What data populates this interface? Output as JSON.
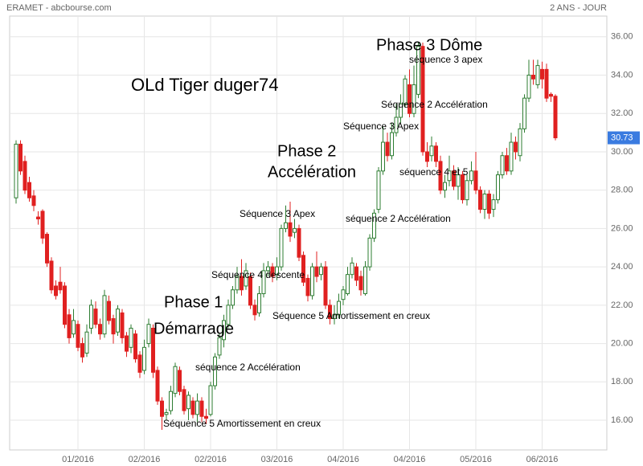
{
  "chart_data": {
    "type": "candlestick",
    "source": "ERAMET - abcbourse.com",
    "period": "2 ANS - JOUR",
    "categories": [
      null,
      null,
      null,
      null,
      null,
      null,
      null,
      null,
      null,
      null,
      null,
      null,
      null,
      null,
      "01/2016",
      null,
      null,
      null,
      null,
      null,
      null,
      null,
      null,
      null,
      null,
      null,
      null,
      null,
      null,
      "02/2016",
      null,
      null,
      null,
      null,
      null,
      null,
      null,
      null,
      null,
      null,
      null,
      null,
      null,
      null,
      "02/2016",
      null,
      null,
      null,
      null,
      null,
      null,
      null,
      null,
      null,
      null,
      null,
      null,
      null,
      null,
      "03/2016",
      null,
      null,
      null,
      null,
      null,
      null,
      null,
      null,
      null,
      null,
      null,
      null,
      null,
      null,
      "04/2016",
      null,
      null,
      null,
      null,
      null,
      null,
      null,
      null,
      null,
      null,
      null,
      null,
      null,
      null,
      "04/2016",
      null,
      null,
      null,
      null,
      null,
      null,
      null,
      null,
      null,
      null,
      null,
      null,
      null,
      null,
      "05/2016",
      null,
      null,
      null,
      null,
      null,
      null,
      null,
      null,
      null,
      null,
      null,
      null,
      null,
      null,
      "06/2016",
      null,
      null,
      null
    ],
    "open": [
      27.6,
      30.4,
      29.5,
      28.4,
      27.7,
      26.6,
      26.9,
      25.7,
      24.3,
      23.0,
      23.2,
      23.0,
      21.5,
      20.5,
      21.0,
      20.0,
      19.5,
      20.8,
      21.8,
      21.0,
      20.5,
      22.2,
      21.3,
      20.6,
      21.6,
      20.4,
      19.8,
      20.5,
      19.4,
      18.6,
      20.0,
      20.8,
      18.6,
      17.0,
      16.3,
      16.5,
      17.4,
      18.6,
      17.6,
      16.6,
      17.0,
      16.3,
      17.0,
      16.2,
      16.3,
      17.8,
      19.4,
      20.2,
      21.0,
      22.0,
      22.8,
      23.5,
      23.0,
      23.5,
      22.0,
      21.6,
      22.6,
      23.8,
      24.0,
      23.6,
      24.0,
      26.0,
      26.3,
      25.8,
      26.0,
      24.6,
      23.4,
      22.5,
      24.0,
      23.6,
      24.0,
      22.0,
      21.3,
      21.5,
      22.3,
      22.6,
      23.6,
      24.0,
      23.5,
      22.6,
      24.0,
      25.5,
      27.0,
      29.0,
      30.5,
      29.8,
      31.0,
      31.8,
      32.5,
      33.5,
      32.0,
      33.0,
      35.5,
      30.0,
      29.8,
      30.3,
      29.5,
      28.0,
      28.5,
      29.0,
      28.2,
      28.8,
      27.5,
      28.5,
      29.0,
      28.0,
      27.0,
      27.8,
      27.0,
      27.5,
      28.8,
      29.8,
      29.0,
      30.5,
      29.8,
      31.2,
      32.8,
      34.0,
      33.5,
      34.3,
      34.3,
      33.0,
      32.9
    ],
    "high": [
      30.6,
      30.6,
      29.8,
      28.7,
      28.0,
      26.9,
      27.0,
      25.8,
      24.5,
      23.3,
      24.0,
      23.2,
      21.8,
      21.8,
      21.2,
      20.3,
      21.0,
      22.3,
      22.2,
      21.3,
      22.8,
      22.5,
      21.5,
      22.0,
      21.8,
      20.6,
      21.0,
      20.7,
      19.6,
      20.2,
      21.3,
      21.0,
      18.8,
      17.2,
      16.6,
      17.8,
      19.0,
      18.8,
      17.8,
      17.5,
      17.2,
      17.4,
      17.2,
      16.6,
      18.0,
      19.5,
      20.5,
      21.5,
      22.3,
      23.0,
      24.0,
      24.4,
      24.2,
      23.7,
      22.3,
      23.0,
      24.2,
      24.3,
      24.2,
      24.5,
      26.2,
      27.2,
      27.4,
      26.5,
      26.2,
      24.8,
      23.6,
      24.2,
      24.8,
      24.2,
      24.3,
      22.3,
      22.0,
      22.6,
      23.0,
      24.0,
      24.5,
      24.2,
      23.8,
      24.3,
      25.7,
      27.0,
      29.2,
      31.3,
      31.0,
      31.5,
      32.5,
      33.0,
      34.0,
      34.3,
      34.5,
      35.7,
      35.7,
      30.5,
      30.8,
      30.5,
      29.8,
      28.8,
      29.8,
      29.3,
      29.2,
      29.0,
      28.8,
      29.5,
      30.0,
      28.2,
      28.0,
      28.0,
      27.8,
      29.0,
      30.0,
      30.2,
      31.0,
      30.8,
      31.5,
      33.0,
      34.8,
      34.8,
      34.8,
      34.7,
      34.6,
      33.1,
      33.0
    ],
    "low": [
      27.3,
      28.8,
      27.8,
      27.4,
      26.9,
      26.2,
      25.2,
      24.0,
      22.6,
      22.3,
      22.6,
      20.8,
      20.0,
      20.3,
      19.6,
      19.0,
      19.3,
      20.5,
      20.8,
      20.2,
      20.3,
      21.0,
      20.0,
      20.4,
      20.0,
      19.3,
      19.5,
      19.0,
      18.2,
      18.4,
      19.8,
      18.2,
      16.8,
      15.5,
      16.0,
      16.3,
      17.2,
      17.3,
      16.3,
      16.0,
      16.1,
      15.9,
      15.9,
      15.8,
      16.2,
      17.6,
      19.2,
      19.8,
      20.8,
      21.8,
      22.6,
      22.5,
      22.8,
      21.8,
      21.2,
      21.4,
      22.4,
      23.5,
      23.2,
      23.3,
      23.8,
      25.8,
      25.3,
      25.5,
      24.3,
      23.0,
      22.2,
      22.3,
      23.2,
      23.3,
      21.8,
      21.0,
      21.0,
      21.3,
      22.0,
      22.5,
      23.4,
      23.0,
      22.5,
      22.5,
      23.8,
      25.3,
      26.8,
      28.8,
      29.5,
      29.6,
      30.8,
      31.5,
      32.3,
      31.8,
      31.8,
      32.8,
      29.8,
      29.2,
      29.5,
      29.2,
      27.8,
      27.6,
      28.2,
      28.0,
      27.5,
      27.3,
      27.2,
      28.3,
      27.8,
      26.8,
      26.5,
      26.5,
      26.6,
      27.3,
      28.6,
      28.8,
      28.8,
      29.6,
      29.5,
      31.0,
      32.6,
      33.5,
      33.3,
      33.3,
      32.6,
      32.6,
      30.6
    ],
    "close": [
      30.4,
      29.0,
      28.0,
      27.6,
      27.2,
      26.5,
      25.5,
      24.2,
      22.8,
      22.5,
      22.8,
      21.0,
      20.3,
      21.2,
      19.8,
      19.3,
      20.6,
      22.0,
      21.0,
      20.5,
      22.5,
      21.2,
      20.5,
      21.8,
      20.3,
      19.6,
      20.8,
      19.2,
      18.5,
      19.8,
      21.0,
      18.5,
      17.0,
      16.2,
      16.4,
      17.5,
      18.8,
      17.5,
      16.5,
      17.3,
      16.3,
      17.0,
      16.2,
      16.1,
      17.8,
      19.3,
      20.3,
      21.2,
      22.0,
      22.8,
      23.5,
      22.8,
      23.8,
      22.0,
      21.5,
      22.6,
      23.8,
      24.0,
      23.5,
      24.0,
      26.0,
      26.3,
      25.6,
      26.0,
      24.5,
      23.2,
      22.5,
      24.0,
      23.5,
      24.0,
      22.0,
      21.3,
      21.5,
      22.2,
      22.8,
      23.6,
      24.2,
      23.3,
      22.8,
      24.0,
      25.5,
      26.8,
      29.0,
      30.5,
      29.8,
      31.0,
      31.8,
      32.5,
      33.8,
      32.0,
      33.5,
      35.5,
      30.0,
      29.5,
      30.3,
      29.5,
      28.0,
      28.4,
      29.0,
      28.2,
      28.8,
      27.5,
      28.5,
      29.0,
      28.0,
      27.0,
      27.8,
      26.8,
      27.5,
      28.8,
      29.8,
      29.0,
      30.5,
      30.0,
      31.2,
      32.8,
      34.0,
      33.8,
      34.5,
      33.8,
      32.8,
      32.9,
      30.73
    ],
    "last_price": 30.73,
    "up_color": "#2e7d32",
    "down_color": "#e02020",
    "last_price_color": "#3a7be0",
    "ylim": [
      14.45,
      37.5
    ],
    "yticks": [
      {
        "value": 16,
        "label": "16.00"
      },
      {
        "value": 18,
        "label": "18.00"
      },
      {
        "value": 20,
        "label": "20.00"
      },
      {
        "value": 22,
        "label": "22.00"
      },
      {
        "value": 24,
        "label": "24.00"
      },
      {
        "value": 26,
        "label": "26.00"
      },
      {
        "value": 28,
        "label": "28.00"
      },
      {
        "value": 30,
        "label": "30.00"
      },
      {
        "value": 32,
        "label": "32.00"
      },
      {
        "value": 34,
        "label": "34.00"
      },
      {
        "value": 36,
        "label": "36.00"
      }
    ],
    "grid": true,
    "annotations": [
      "OLd Tiger duger74",
      "Phase 3 Dôme",
      "séquence 3 apex",
      "Séquence 2 Accélération",
      "Séquence 3 Apex",
      "Phase 2",
      "Accélération",
      "séquence 4 et 5",
      "Séquence 3 Apex",
      "séquence 2 Accélération",
      "Séquence 4 descente",
      "Phase 1",
      "Démarrage",
      "Séquence 5 Amortissement en creux",
      "séquence 2 Accélération",
      "Séquence 5 Amortissement en creux"
    ]
  }
}
